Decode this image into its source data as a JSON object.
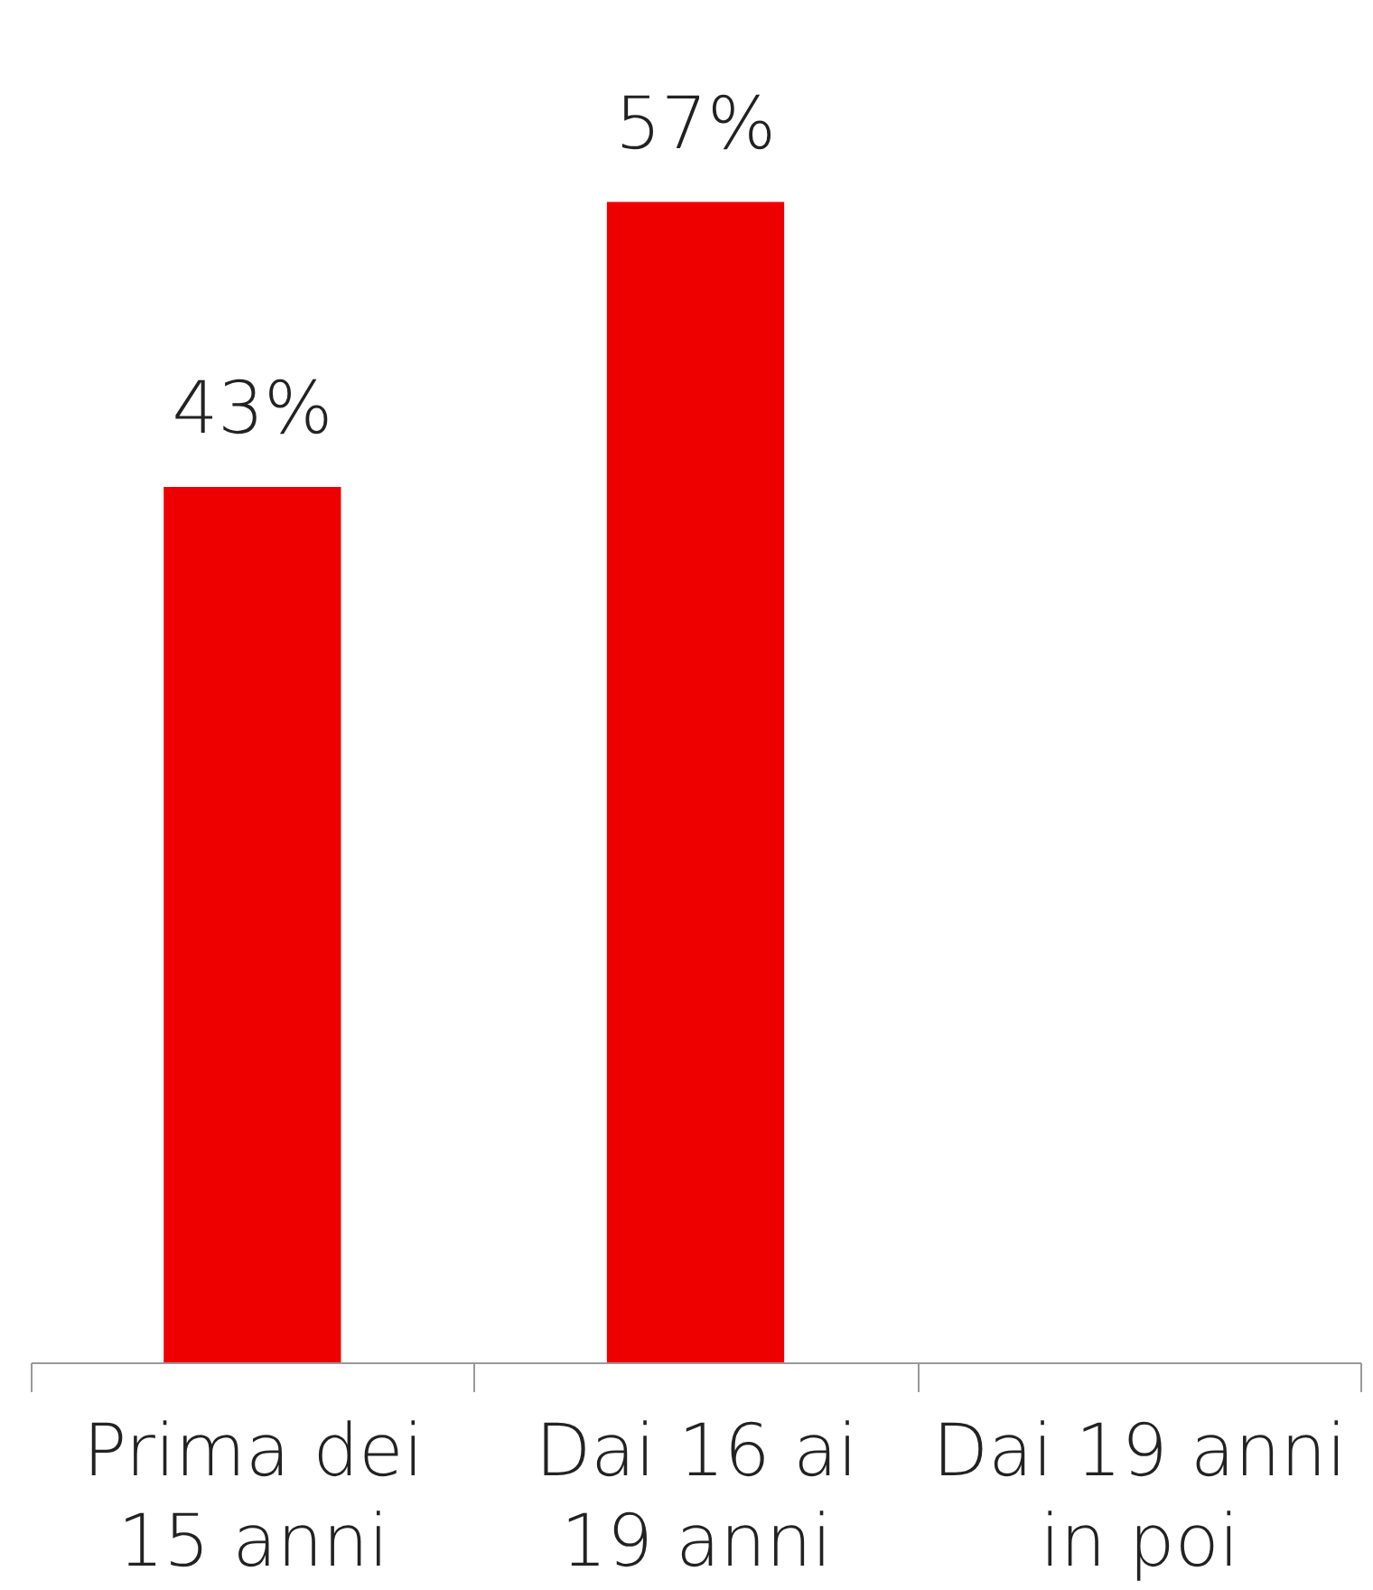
{
  "chart_data": {
    "type": "bar",
    "categories": [
      "Prima dei 15 anni",
      "Dai 16 ai 19 anni",
      "Dai 19 anni in poi"
    ],
    "values": [
      43,
      57,
      null
    ],
    "value_labels": [
      "43%",
      "57%",
      null
    ],
    "color": "#ee0000",
    "grid": false
  }
}
